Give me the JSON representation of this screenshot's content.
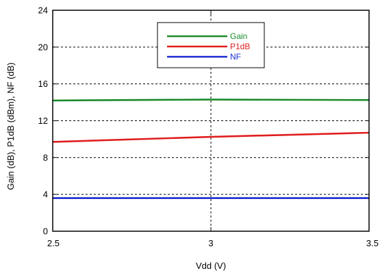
{
  "chart_data": {
    "type": "line",
    "xlabel": "Vdd (V)",
    "ylabel": "Gain (dB), P1dB (dBm), NF (dB)",
    "xlim": [
      2.5,
      3.5
    ],
    "ylim": [
      0,
      24
    ],
    "x_ticks": [
      2.5,
      3,
      3.5
    ],
    "x_tick_labels": [
      "2.5",
      "3",
      "3.5"
    ],
    "y_ticks": [
      0,
      4,
      8,
      12,
      16,
      20,
      24
    ],
    "y_tick_labels": [
      "0",
      "4",
      "8",
      "12",
      "16",
      "20",
      "24"
    ],
    "grid": true,
    "legend_position": "top-center",
    "series": [
      {
        "name": "Gain",
        "color": "#1a8a2a",
        "x": [
          2.5,
          3.0,
          3.5
        ],
        "y": [
          14.2,
          14.3,
          14.25
        ]
      },
      {
        "name": "P1dB",
        "color": "#e01e1e",
        "x": [
          2.5,
          3.0,
          3.5
        ],
        "y": [
          9.7,
          10.25,
          10.7
        ]
      },
      {
        "name": "NF",
        "color": "#1a2ad0",
        "x": [
          2.5,
          3.0,
          3.5
        ],
        "y": [
          3.6,
          3.6,
          3.6
        ]
      }
    ]
  }
}
